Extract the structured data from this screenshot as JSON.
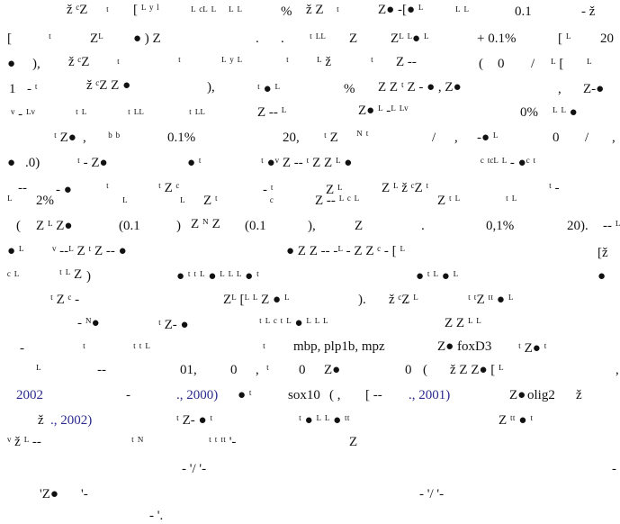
{
  "fragments": {
    "pct1": "%",
    "v01": "0.1",
    "plus01": "+ 0.1%",
    "n20a": "20",
    "paren_comma": "),",
    "paren_open": "(",
    "zero_a": "0",
    "slash_a": "/",
    "one": "1",
    "pct2": "%",
    "comma_b": ",",
    "zero_pct": "0%",
    "comma_c": ",",
    "v01pct": "0.1%",
    "n20b": "20,",
    "slash_b": "/",
    "comma_d": ",",
    "zero_b": "0",
    "slash_c": "/",
    "comma_e": ",",
    "dot0": ".0)",
    "two_pct": "2%",
    "paren_open_b": "(",
    "p01a": "(0.1",
    "paren_close_b": ")",
    "p01b": "(0.1",
    "paren_comma_b": "),",
    "period_a": ".",
    "v01pct_b": "0,1%",
    "n20c": "20).",
    "paren_close_c": ")",
    "paren_close_d": ").",
    "period_b": ".",
    "genes_a": "mbp, plp1b, mpz",
    "gene_fox": "foxD3",
    "n01": "01,",
    "zero_c": "0",
    "comma_f": ",",
    "zero_d": "0",
    "zero_e": "0",
    "paren_open_c": "(",
    "comma_g": ",",
    "year2002": "2002",
    "ref2000": "., 2000)",
    "gene_sox": "sox10",
    "paren_open_d": "( ,",
    "ref2001": "., 2001)",
    "gene_olig": "olig2",
    "ref2002": "., 2002)",
    "dash_a": "-",
    "slashes_a": "- '/ '-",
    "dash_b": "-",
    "apos_a": "'-",
    "slashes_b": "- '/ '-",
    "dash_end": "- '."
  }
}
